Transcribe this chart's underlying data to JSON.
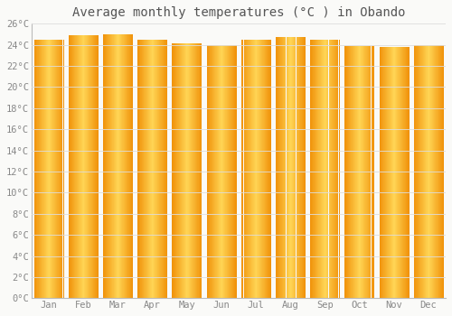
{
  "title": "Average monthly temperatures (°C ) in Obando",
  "months": [
    "Jan",
    "Feb",
    "Mar",
    "Apr",
    "May",
    "Jun",
    "Jul",
    "Aug",
    "Sep",
    "Oct",
    "Nov",
    "Dec"
  ],
  "values": [
    24.5,
    24.9,
    25.0,
    24.5,
    24.1,
    24.0,
    24.5,
    24.7,
    24.5,
    23.9,
    23.8,
    24.0
  ],
  "bar_color_center": "#FFD060",
  "bar_color_edge": "#F0920A",
  "background_color": "#FAFAF8",
  "grid_color": "#DDDDDD",
  "text_color": "#888888",
  "title_color": "#555555",
  "ylim": [
    0,
    26
  ],
  "yticks": [
    0,
    2,
    4,
    6,
    8,
    10,
    12,
    14,
    16,
    18,
    20,
    22,
    24,
    26
  ],
  "ytick_labels": [
    "0°C",
    "2°C",
    "4°C",
    "6°C",
    "8°C",
    "10°C",
    "12°C",
    "14°C",
    "16°C",
    "18°C",
    "20°C",
    "22°C",
    "24°C",
    "26°C"
  ],
  "title_fontsize": 10,
  "tick_fontsize": 7.5,
  "font_family": "monospace",
  "bar_width": 0.85
}
